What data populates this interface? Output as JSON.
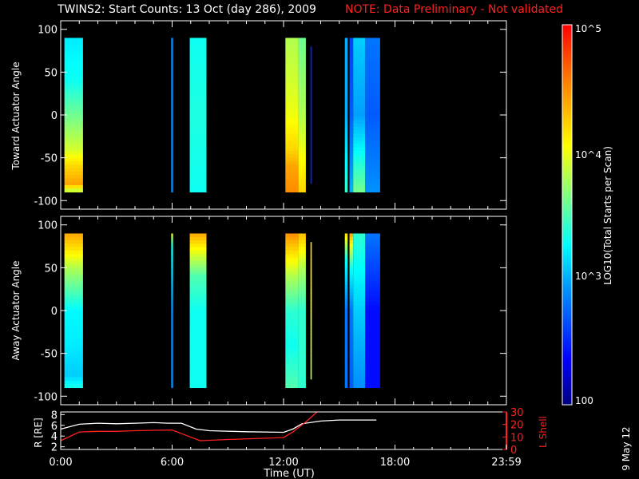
{
  "header": {
    "title": "TWINS2: Start Counts: 13 Oct (day 286), 2009",
    "note": "NOTE: Data Preliminary - Not validated"
  },
  "colorbar": {
    "label": "LOG10(Total Starts per Scan)",
    "ticks": [
      "10^5",
      "10^4",
      "10^3",
      "100"
    ]
  },
  "panels": {
    "top_ylabel": "Toward Actuator Angle",
    "bottom_ylabel": "Away Actuator Angle",
    "y_ticks": [
      "100",
      "50",
      "0",
      "-50",
      "-100"
    ]
  },
  "ephem": {
    "r_label": "R [RE]",
    "l_label": "L Shell",
    "r_ticks": [
      "8",
      "6",
      "4",
      "2"
    ],
    "l_ticks": [
      "30",
      "20",
      "10",
      "0"
    ]
  },
  "xaxis": {
    "label": "Time (UT)",
    "ticks": [
      "0:00",
      "6:00",
      "12:00",
      "18:00",
      "23:59"
    ]
  },
  "datestamp": "9 May 12",
  "colors": {
    "background": "#000000",
    "note": "#ff2020",
    "lshell": "#ff2020",
    "r_line": "#ffffff"
  },
  "chart_data": [
    {
      "type": "heatmap",
      "name": "Toward Actuator Angle",
      "xlabel": "Time (UT)",
      "ylabel": "Toward Actuator Angle",
      "xlim": [
        0,
        24
      ],
      "ylim": [
        -110,
        110
      ],
      "zscale": "log",
      "zlim": [
        100,
        100000
      ],
      "segments": [
        {
          "x": [
            0.2,
            1.2
          ],
          "y": [
            -88,
            90
          ],
          "profile": [
            [
              90,
              3.2
            ],
            [
              40,
              3.3
            ],
            [
              0,
              3.6
            ],
            [
              -40,
              3.9
            ],
            [
              -60,
              4.2
            ],
            [
              -80,
              4.4
            ],
            [
              -88,
              3.9
            ]
          ]
        },
        {
          "x": [
            5.95,
            6.05
          ],
          "y": [
            -88,
            90
          ],
          "profile": [
            [
              90,
              2.9
            ],
            [
              -88,
              2.9
            ]
          ]
        },
        {
          "x": [
            6.95,
            7.85
          ],
          "y": [
            -88,
            90
          ],
          "profile": [
            [
              90,
              3.3
            ],
            [
              0,
              3.35
            ],
            [
              -88,
              3.3
            ]
          ]
        },
        {
          "x": [
            12.1,
            12.8
          ],
          "y": [
            -88,
            90
          ],
          "profile": [
            [
              90,
              3.8
            ],
            [
              40,
              3.9
            ],
            [
              0,
              4.0
            ],
            [
              -40,
              4.2
            ],
            [
              -60,
              4.4
            ],
            [
              -88,
              4.5
            ]
          ]
        },
        {
          "x": [
            12.8,
            13.2
          ],
          "y": [
            -88,
            90
          ],
          "profile": [
            [
              90,
              3.6
            ],
            [
              0,
              3.8
            ],
            [
              -88,
              4.2
            ]
          ]
        },
        {
          "x": [
            13.45,
            13.52
          ],
          "y": [
            -80,
            80
          ],
          "profile": [
            [
              80,
              2.5
            ],
            [
              -80,
              2.5
            ]
          ]
        },
        {
          "x": [
            15.3,
            15.45
          ],
          "y": [
            -88,
            90
          ],
          "profile": [
            [
              90,
              3.0
            ],
            [
              0,
              3.0
            ],
            [
              -88,
              3.4
            ]
          ]
        },
        {
          "x": [
            15.55,
            15.75
          ],
          "y": [
            -88,
            90
          ],
          "profile": [
            [
              90,
              2.6
            ],
            [
              0,
              2.7
            ],
            [
              -88,
              3.0
            ]
          ]
        },
        {
          "x": [
            15.75,
            16.4
          ],
          "y": [
            -88,
            90
          ],
          "profile": [
            [
              90,
              3.1
            ],
            [
              0,
              2.95
            ],
            [
              -88,
              3.6
            ]
          ]
        },
        {
          "x": [
            16.4,
            17.2
          ],
          "y": [
            -88,
            90
          ],
          "profile": [
            [
              90,
              2.8
            ],
            [
              0,
              2.7
            ],
            [
              -88,
              2.9
            ]
          ]
        }
      ]
    },
    {
      "type": "heatmap",
      "name": "Away Actuator Angle",
      "xlabel": "Time (UT)",
      "ylabel": "Away Actuator Angle",
      "xlim": [
        0,
        24
      ],
      "ylim": [
        -110,
        110
      ],
      "zscale": "log",
      "zlim": [
        100,
        100000
      ],
      "segments": [
        {
          "x": [
            0.2,
            1.2
          ],
          "y": [
            -88,
            90
          ],
          "profile": [
            [
              90,
              4.4
            ],
            [
              75,
              4.2
            ],
            [
              50,
              3.8
            ],
            [
              0,
              3.25
            ],
            [
              -40,
              3.2
            ],
            [
              -75,
              3.1
            ],
            [
              -88,
              3.3
            ]
          ]
        },
        {
          "x": [
            5.95,
            6.05
          ],
          "y": [
            -88,
            90
          ],
          "profile": [
            [
              90,
              4.0
            ],
            [
              75,
              3.3
            ],
            [
              0,
              2.9
            ],
            [
              -88,
              2.9
            ]
          ]
        },
        {
          "x": [
            6.95,
            7.85
          ],
          "y": [
            -88,
            90
          ],
          "profile": [
            [
              90,
              4.4
            ],
            [
              70,
              4.0
            ],
            [
              40,
              3.5
            ],
            [
              0,
              3.3
            ],
            [
              -88,
              3.3
            ]
          ]
        },
        {
          "x": [
            12.1,
            12.8
          ],
          "y": [
            -88,
            90
          ],
          "profile": [
            [
              90,
              4.5
            ],
            [
              70,
              4.2
            ],
            [
              40,
              3.8
            ],
            [
              0,
              3.4
            ],
            [
              -40,
              3.3
            ],
            [
              -88,
              3.5
            ]
          ]
        },
        {
          "x": [
            12.8,
            13.2
          ],
          "y": [
            -88,
            90
          ],
          "profile": [
            [
              90,
              4.3
            ],
            [
              50,
              3.8
            ],
            [
              0,
              3.4
            ],
            [
              -88,
              3.4
            ]
          ]
        },
        {
          "x": [
            13.45,
            13.52
          ],
          "y": [
            -80,
            80
          ],
          "profile": [
            [
              80,
              4.2
            ],
            [
              -80,
              3.8
            ]
          ]
        },
        {
          "x": [
            15.3,
            15.45
          ],
          "y": [
            -88,
            90
          ],
          "profile": [
            [
              90,
              4.2
            ],
            [
              60,
              3.3
            ],
            [
              0,
              2.8
            ],
            [
              -88,
              2.8
            ]
          ]
        },
        {
          "x": [
            15.55,
            15.75
          ],
          "y": [
            -88,
            90
          ],
          "profile": [
            [
              90,
              4.4
            ],
            [
              50,
              3.3
            ],
            [
              0,
              2.8
            ],
            [
              -88,
              2.7
            ]
          ]
        },
        {
          "x": [
            15.75,
            16.4
          ],
          "y": [
            -88,
            90
          ],
          "profile": [
            [
              90,
              3.4
            ],
            [
              0,
              3.1
            ],
            [
              -88,
              2.9
            ]
          ]
        },
        {
          "x": [
            16.4,
            17.2
          ],
          "y": [
            -88,
            90
          ],
          "profile": [
            [
              90,
              2.8
            ],
            [
              0,
              2.4
            ],
            [
              -88,
              2.4
            ]
          ]
        }
      ]
    },
    {
      "type": "line",
      "name": "ephemeris",
      "xlabel": "Time (UT)",
      "xlim": [
        0,
        24
      ],
      "series": [
        {
          "name": "R [RE]",
          "axis": "left",
          "ylim": [
            1.5,
            8.5
          ],
          "x": [
            0,
            1,
            2,
            3,
            4,
            5,
            5.8,
            6.5,
            7.3,
            8,
            10,
            12,
            12.5,
            13,
            14,
            15,
            16,
            17
          ],
          "y": [
            5.3,
            6.2,
            6.4,
            6.3,
            6.4,
            6.5,
            6.4,
            6.4,
            5.3,
            5.0,
            4.8,
            4.7,
            5.3,
            6.3,
            6.8,
            7.0,
            7.0,
            7.0
          ]
        },
        {
          "name": "L Shell",
          "axis": "right",
          "ylim": [
            0,
            30
          ],
          "x": [
            0,
            1,
            2,
            3,
            4,
            5,
            6,
            7.5,
            9,
            12,
            12.5,
            13.2,
            13.8
          ],
          "y": [
            7,
            14,
            14.5,
            14.5,
            15,
            15.3,
            15.5,
            7,
            8,
            9.5,
            14,
            22,
            30
          ]
        }
      ]
    }
  ]
}
